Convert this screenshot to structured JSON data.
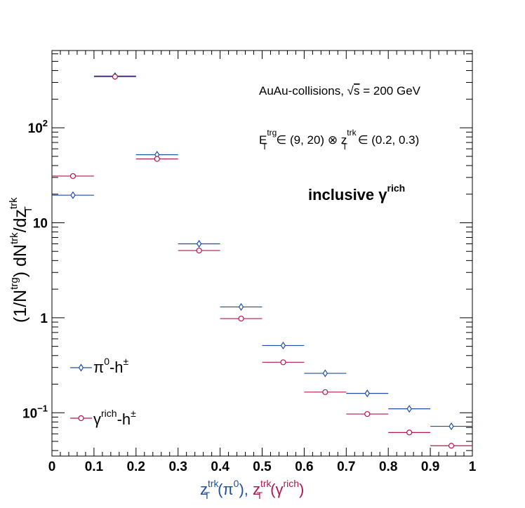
{
  "colors": {
    "pi0": "#1f4ea3",
    "gamma": "#b0184f",
    "axis": "#000000"
  },
  "annotations": {
    "collisions_prefix": "AuAu-collisions, ",
    "sqrt_symbol": "√",
    "sqrt_arg": "s",
    "energy": " = 200 GeV",
    "et_base": "E",
    "et_sup": "trg",
    "et_sub": "T",
    "et_range": " ∈ (9, 20) ⊗ z",
    "zt_sup": "trk",
    "zt_sub": "T",
    "zt_range": " ∈ (0.2, 0.3)",
    "inclusive_main": "inclusive γ",
    "inclusive_sup": "rich"
  },
  "axis_labels": {
    "y_open": "(1/N",
    "y_sup1": "trg",
    "y_mid": ") dN",
    "y_sup2": "trk",
    "y_div": "/dz",
    "y_sup3": "trk",
    "y_sub3": "T",
    "x_z1": "z",
    "x_z1_sup": "trk",
    "x_z1_sub": "T",
    "x_p1": "(π",
    "x_p1_sup": "0",
    "x_p1_close": "), ",
    "x_z2": "z",
    "x_z2_sup": "trk",
    "x_z2_sub": "T",
    "x_p2": "(γ",
    "x_p2_sup": "rich",
    "x_p2_close": ")"
  },
  "legend": [
    {
      "base": "π",
      "sup1": "0",
      "mid": "-h",
      "sup2": "±"
    },
    {
      "base": "γ",
      "sup1": "rich",
      "mid": "-h",
      "sup2": "±"
    }
  ],
  "chart_data": {
    "type": "scatter",
    "log_y": true,
    "xlim": [
      0,
      1
    ],
    "ylim": [
      0.035,
      650
    ],
    "x_ticks": [
      "0",
      "0.1",
      "0.2",
      "0.3",
      "0.4",
      "0.5",
      "0.6",
      "0.7",
      "0.8",
      "0.9",
      "1"
    ],
    "y_ticks": [
      {
        "value": 0.1,
        "base": "10",
        "sup": "−1"
      },
      {
        "value": 1,
        "base": "1",
        "sup": ""
      },
      {
        "value": 10,
        "base": "10",
        "sup": ""
      },
      {
        "value": 100,
        "base": "10",
        "sup": "2"
      }
    ],
    "bin_edges": [
      0,
      0.1,
      0.2,
      0.3,
      0.4,
      0.5,
      0.6,
      0.7,
      0.8,
      0.9,
      1.0
    ],
    "series": [
      {
        "marker": "diamond",
        "color": "#1f4ea3",
        "values": [
          19.5,
          350,
          52,
          6.0,
          1.3,
          0.51,
          0.26,
          0.16,
          0.11,
          0.072
        ]
      },
      {
        "marker": "circle",
        "color": "#b0184f",
        "values": [
          31,
          345,
          47,
          5.1,
          0.98,
          0.34,
          0.165,
          0.097,
          0.062,
          0.045
        ]
      }
    ]
  }
}
